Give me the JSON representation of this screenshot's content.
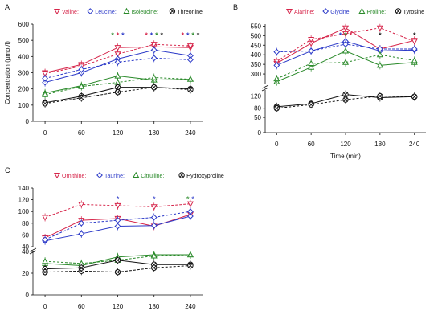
{
  "chart_data": [
    {
      "panel": "A",
      "type": "line",
      "x": [
        0,
        60,
        120,
        180,
        240
      ],
      "ylabel": "Concentration (µmol/l)",
      "yticks": [
        0,
        100,
        200,
        300,
        400,
        500,
        600
      ],
      "ylim": [
        0,
        600
      ],
      "legend_placement": "top",
      "series": [
        {
          "name": "Valine",
          "color": "#d6254a",
          "marker": "triangle-down",
          "solid": [
            300,
            350,
            455,
            460,
            455
          ],
          "dashed": [
            295,
            340,
            415,
            475,
            465
          ]
        },
        {
          "name": "Leucine",
          "color": "#2b39c8",
          "marker": "diamond",
          "solid": [
            240,
            300,
            385,
            440,
            405
          ],
          "dashed": [
            265,
            320,
            365,
            390,
            380
          ]
        },
        {
          "name": "Isoleucine",
          "color": "#2a8a2a",
          "marker": "triangle-up",
          "solid": [
            175,
            220,
            280,
            255,
            260
          ],
          "dashed": [
            165,
            215,
            240,
            270,
            260
          ]
        },
        {
          "name": "Threonine",
          "color": "#111111",
          "marker": "x-circle",
          "solid": [
            115,
            155,
            210,
            210,
            200
          ],
          "dashed": [
            110,
            145,
            180,
            210,
            195
          ]
        }
      ],
      "annotations": [
        {
          "x": 120,
          "stars": [
            {
              "t": "*",
              "c": "#2a8a2a"
            },
            {
              "t": "*",
              "c": "#d6254a"
            },
            {
              "t": "*",
              "c": "#2b39c8"
            }
          ]
        },
        {
          "x": 180,
          "stars": [
            {
              "t": "*",
              "c": "#d6254a"
            },
            {
              "t": "*",
              "c": "#2b39c8"
            },
            {
              "t": "*",
              "c": "#2a8a2a"
            },
            {
              "t": "*",
              "c": "#111111"
            }
          ]
        },
        {
          "x": 240,
          "stars": [
            {
              "t": "*",
              "c": "#d6254a"
            },
            {
              "t": "*",
              "c": "#2b39c8"
            },
            {
              "t": "*",
              "c": "#2a8a2a"
            },
            {
              "t": "*",
              "c": "#111111"
            }
          ]
        }
      ]
    },
    {
      "panel": "B",
      "type": "line",
      "x": [
        0,
        60,
        120,
        180,
        240
      ],
      "xlabel": "Time (min)",
      "yticks_upper": [
        300,
        350,
        400,
        450,
        500,
        550
      ],
      "yticks_lower": [
        0,
        50,
        80,
        120
      ],
      "axis_break": true,
      "legend_placement": "top",
      "series": [
        {
          "name": "Alanine",
          "color": "#d6254a",
          "marker": "triangle-down",
          "solid": [
            355,
            460,
            540,
            430,
            475
          ],
          "dashed": [
            365,
            480,
            510,
            540,
            470
          ]
        },
        {
          "name": "Glycine",
          "color": "#2b39c8",
          "marker": "diamond",
          "solid": [
            345,
            420,
            470,
            420,
            425
          ],
          "dashed": [
            415,
            420,
            455,
            430,
            430
          ]
        },
        {
          "name": "Proline",
          "color": "#2a8a2a",
          "marker": "triangle-up",
          "solid": [
            260,
            335,
            420,
            345,
            360
          ],
          "dashed": [
            275,
            355,
            360,
            400,
            370
          ]
        },
        {
          "name": "Tyrosine",
          "color": "#111111",
          "marker": "x-circle",
          "solid": [
            85,
            95,
            125,
            115,
            118
          ],
          "dashed": [
            80,
            92,
            108,
            120,
            118
          ]
        }
      ],
      "annotations": [
        {
          "x": 120,
          "stars": [
            {
              "t": "*",
              "c": "#2b39c8"
            },
            {
              "t": "*",
              "c": "#2a8a2a"
            },
            {
              "t": "*",
              "c": "#d6254a"
            }
          ]
        },
        {
          "x": 180,
          "stars": [
            {
              "t": "*",
              "c": "#111111"
            }
          ]
        },
        {
          "x": 240,
          "stars": [
            {
              "t": "*",
              "c": "#111111"
            }
          ]
        }
      ]
    },
    {
      "panel": "C",
      "type": "line",
      "x": [
        0,
        60,
        120,
        180,
        240
      ],
      "yticks_upper": [
        40,
        60,
        80,
        100,
        120,
        140
      ],
      "yticks_lower": [
        0,
        20,
        40
      ],
      "axis_break": true,
      "legend_placement": "top",
      "series": [
        {
          "name": "Ornithine",
          "color": "#d6254a",
          "marker": "triangle-down",
          "solid": [
            55,
            85,
            88,
            75,
            95
          ],
          "dashed": [
            90,
            112,
            110,
            108,
            113
          ]
        },
        {
          "name": "Taurine",
          "color": "#2b39c8",
          "marker": "diamond",
          "solid": [
            50,
            62,
            75,
            76,
            92
          ],
          "dashed": [
            52,
            80,
            85,
            90,
            100
          ]
        },
        {
          "name": "Citrulline",
          "color": "#2a8a2a",
          "marker": "triangle-up",
          "solid": [
            29,
            27,
            35,
            37,
            37
          ],
          "dashed": [
            31,
            29,
            32,
            36,
            37
          ]
        },
        {
          "name": "Hydroxyproline",
          "color": "#111111",
          "marker": "x-circle",
          "solid": [
            24,
            25,
            32,
            28,
            28
          ],
          "dashed": [
            21,
            22,
            21,
            25,
            27
          ]
        }
      ],
      "annotations": [
        {
          "x": 120,
          "stars": [
            {
              "t": "*",
              "c": "#2b39c8"
            }
          ]
        },
        {
          "x": 180,
          "stars": [
            {
              "t": "*",
              "c": "#2b39c8"
            }
          ]
        },
        {
          "x": 240,
          "stars": [
            {
              "t": "*",
              "c": "#2a8a2a"
            },
            {
              "t": "*",
              "c": "#2b39c8"
            }
          ]
        }
      ]
    }
  ]
}
